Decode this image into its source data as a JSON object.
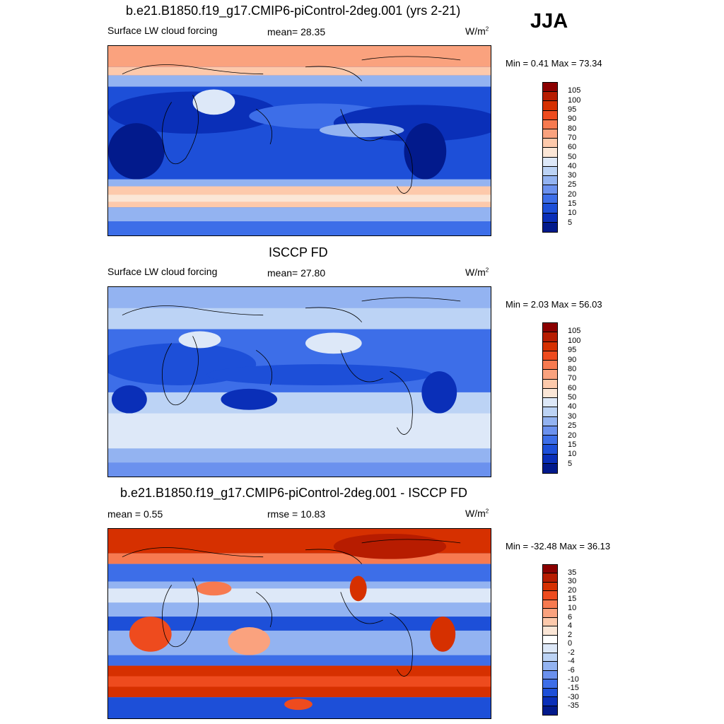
{
  "season": "JJA",
  "panels": [
    {
      "title": "b.e21.B1850.f19_g17.CMIP6-piControl-2deg.001 (yrs 2-21)",
      "left_label": "Surface LW cloud forcing",
      "center_label": "mean=  28.35",
      "unit": "W/m",
      "unit_exp": "2",
      "minmax": "Min =   0.41 Max =  73.34",
      "levels": [
        "105",
        "100",
        "95",
        "90",
        "80",
        "70",
        "60",
        "50",
        "40",
        "30",
        "25",
        "20",
        "15",
        "10",
        "5"
      ],
      "colors": [
        "#8b0000",
        "#b71c00",
        "#d63000",
        "#ee4b1e",
        "#f77a50",
        "#faa27e",
        "#fdc9ab",
        "#fbe6d6",
        "#dde8f8",
        "#bcd3f5",
        "#93b3f1",
        "#6b91ee",
        "#3d6ee8",
        "#1d4fd8",
        "#0a2fb8",
        "#021a8c"
      ]
    },
    {
      "title": "ISCCP FD",
      "left_label": "Surface LW cloud forcing",
      "center_label": "mean=  27.80",
      "unit": "W/m",
      "unit_exp": "2",
      "minmax": "Min =   2.03 Max =  56.03",
      "levels": [
        "105",
        "100",
        "95",
        "90",
        "80",
        "70",
        "60",
        "50",
        "40",
        "30",
        "25",
        "20",
        "15",
        "10",
        "5"
      ],
      "colors": [
        "#8b0000",
        "#b71c00",
        "#d63000",
        "#ee4b1e",
        "#f77a50",
        "#faa27e",
        "#fdc9ab",
        "#fbe6d6",
        "#dde8f8",
        "#bcd3f5",
        "#93b3f1",
        "#6b91ee",
        "#3d6ee8",
        "#1d4fd8",
        "#0a2fb8",
        "#021a8c"
      ]
    },
    {
      "title": "b.e21.B1850.f19_g17.CMIP6-piControl-2deg.001 - ISCCP FD",
      "left_label": "mean =   0.55",
      "center_label": "rmse =  10.83",
      "unit": "W/m",
      "unit_exp": "2",
      "minmax": "Min = -32.48 Max =  36.13",
      "levels": [
        "35",
        "30",
        "20",
        "15",
        "10",
        "6",
        "4",
        "2",
        "0",
        "-2",
        "-4",
        "-6",
        "-10",
        "-15",
        "-30",
        "-35"
      ],
      "colors": [
        "#8b0000",
        "#b71c00",
        "#d63000",
        "#ee4b1e",
        "#f77a50",
        "#faa27e",
        "#fdc9ab",
        "#fbe6d6",
        "#ffffff",
        "#dde8f8",
        "#bcd3f5",
        "#93b3f1",
        "#6b91ee",
        "#3d6ee8",
        "#1d4fd8",
        "#0a2fb8",
        "#021a8c"
      ]
    }
  ]
}
